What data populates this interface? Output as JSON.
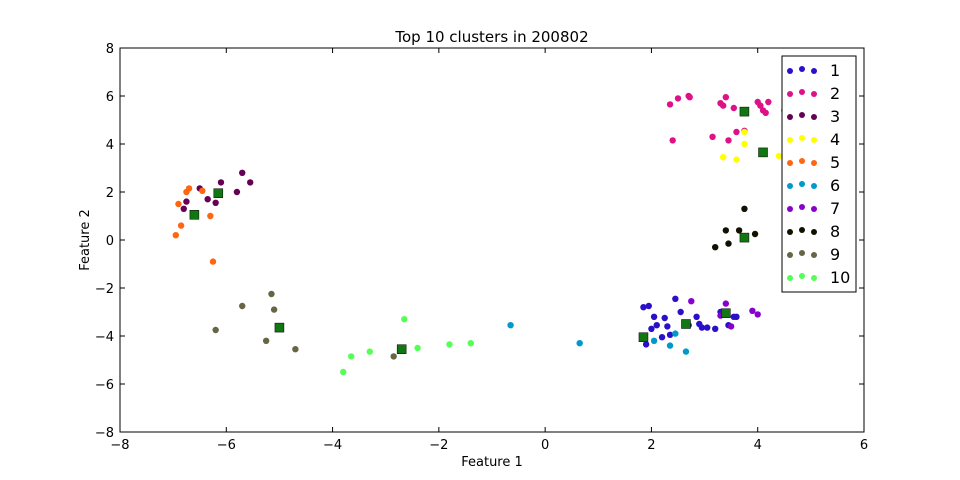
{
  "chart_data": {
    "type": "scatter",
    "title": "Top 10 clusters in 200802",
    "xlabel": "Feature 1",
    "ylabel": "Feature 2",
    "xlim": [
      -8,
      6
    ],
    "ylim": [
      -8,
      8
    ],
    "xticks": [
      -8,
      -6,
      -4,
      -2,
      0,
      2,
      4,
      6
    ],
    "yticks": [
      -8,
      -6,
      -4,
      -2,
      0,
      2,
      4,
      6,
      8
    ],
    "xtick_labels": [
      "−8",
      "−6",
      "−4",
      "−2",
      "0",
      "2",
      "4",
      "6"
    ],
    "ytick_labels": [
      "−8",
      "−6",
      "−4",
      "−2",
      "0",
      "2",
      "4",
      "6",
      "8"
    ],
    "grid": false,
    "legend_position": "top-right",
    "centroid_color": "#117711",
    "series": [
      {
        "name": "1",
        "color": "#2a10c8",
        "points": [
          [
            1.85,
            -2.8
          ],
          [
            1.95,
            -2.75
          ],
          [
            1.9,
            -4.35
          ],
          [
            2.0,
            -3.7
          ],
          [
            2.05,
            -3.2
          ],
          [
            2.1,
            -3.55
          ],
          [
            2.2,
            -4.05
          ],
          [
            2.25,
            -3.25
          ],
          [
            2.3,
            -3.6
          ],
          [
            2.35,
            -3.95
          ],
          [
            2.45,
            -2.45
          ],
          [
            2.55,
            -3.0
          ],
          [
            2.7,
            -3.55
          ],
          [
            2.85,
            -3.2
          ],
          [
            2.9,
            -3.5
          ],
          [
            2.95,
            -3.65
          ],
          [
            3.05,
            -3.65
          ],
          [
            3.2,
            -3.7
          ],
          [
            3.3,
            -3.0
          ],
          [
            3.4,
            -3.1
          ],
          [
            3.45,
            -3.55
          ],
          [
            3.55,
            -3.2
          ],
          [
            3.6,
            -3.2
          ]
        ]
      },
      {
        "name": "2",
        "color": "#dd1188",
        "points": [
          [
            2.35,
            5.65
          ],
          [
            2.4,
            4.15
          ],
          [
            2.5,
            5.9
          ],
          [
            2.7,
            6.0
          ],
          [
            2.72,
            5.95
          ],
          [
            3.15,
            4.3
          ],
          [
            3.3,
            5.7
          ],
          [
            3.35,
            5.6
          ],
          [
            3.4,
            5.95
          ],
          [
            3.45,
            4.15
          ],
          [
            3.55,
            5.5
          ],
          [
            3.6,
            4.5
          ],
          [
            3.75,
            4.55
          ],
          [
            4.0,
            5.75
          ],
          [
            4.05,
            5.6
          ],
          [
            4.1,
            5.4
          ],
          [
            4.15,
            5.3
          ],
          [
            4.2,
            5.75
          ],
          [
            4.5,
            5.4
          ]
        ]
      },
      {
        "name": "3",
        "color": "#660055",
        "points": [
          [
            -6.8,
            1.3
          ],
          [
            -6.75,
            1.6
          ],
          [
            -6.5,
            2.15
          ],
          [
            -6.35,
            1.7
          ],
          [
            -6.2,
            1.55
          ],
          [
            -6.1,
            2.4
          ],
          [
            -5.8,
            2.0
          ],
          [
            -5.7,
            2.8
          ],
          [
            -5.55,
            2.4
          ]
        ]
      },
      {
        "name": "4",
        "color": "#ffff00",
        "points": [
          [
            3.35,
            3.45
          ],
          [
            3.6,
            3.35
          ],
          [
            3.75,
            4.5
          ],
          [
            3.75,
            4.0
          ],
          [
            4.4,
            3.5
          ]
        ]
      },
      {
        "name": "5",
        "color": "#ff6611",
        "points": [
          [
            -6.95,
            0.2
          ],
          [
            -6.9,
            1.5
          ],
          [
            -6.85,
            0.6
          ],
          [
            -6.75,
            2.0
          ],
          [
            -6.7,
            2.15
          ],
          [
            -6.45,
            2.05
          ],
          [
            -6.3,
            1.0
          ],
          [
            -6.25,
            -0.9
          ]
        ]
      },
      {
        "name": "6",
        "color": "#0099cc",
        "points": [
          [
            -0.65,
            -3.55
          ],
          [
            0.65,
            -4.3
          ],
          [
            2.05,
            -4.2
          ],
          [
            2.35,
            -4.4
          ],
          [
            2.45,
            -3.9
          ],
          [
            2.65,
            -4.65
          ]
        ]
      },
      {
        "name": "7",
        "color": "#8800cc",
        "points": [
          [
            2.75,
            -2.55
          ],
          [
            3.3,
            -3.15
          ],
          [
            3.4,
            -2.65
          ],
          [
            3.5,
            -3.6
          ],
          [
            3.9,
            -2.95
          ],
          [
            4.0,
            -3.1
          ]
        ]
      },
      {
        "name": "8",
        "color": "#111100",
        "points": [
          [
            3.2,
            -0.3
          ],
          [
            3.4,
            0.4
          ],
          [
            3.45,
            -0.15
          ],
          [
            3.65,
            0.4
          ],
          [
            3.75,
            1.3
          ],
          [
            3.95,
            0.25
          ]
        ]
      },
      {
        "name": "9",
        "color": "#666644",
        "points": [
          [
            -6.2,
            -3.75
          ],
          [
            -5.7,
            -2.75
          ],
          [
            -5.25,
            -4.2
          ],
          [
            -5.15,
            -2.25
          ],
          [
            -5.1,
            -2.9
          ],
          [
            -4.7,
            -4.55
          ],
          [
            -2.85,
            -4.85
          ]
        ]
      },
      {
        "name": "10",
        "color": "#55ff55",
        "points": [
          [
            -3.8,
            -5.5
          ],
          [
            -3.65,
            -4.85
          ],
          [
            -3.3,
            -4.65
          ],
          [
            -2.65,
            -3.3
          ],
          [
            -2.4,
            -4.5
          ],
          [
            -1.8,
            -4.35
          ],
          [
            -1.4,
            -4.3
          ]
        ]
      }
    ],
    "centroids": [
      [
        1.85,
        -4.05
      ],
      [
        2.65,
        -3.5
      ],
      [
        3.4,
        -3.05
      ],
      [
        3.75,
        5.35
      ],
      [
        4.1,
        3.65
      ],
      [
        3.75,
        0.1
      ],
      [
        -6.15,
        1.95
      ],
      [
        -6.6,
        1.05
      ],
      [
        -5.0,
        -3.65
      ],
      [
        -2.7,
        -4.55
      ]
    ]
  }
}
